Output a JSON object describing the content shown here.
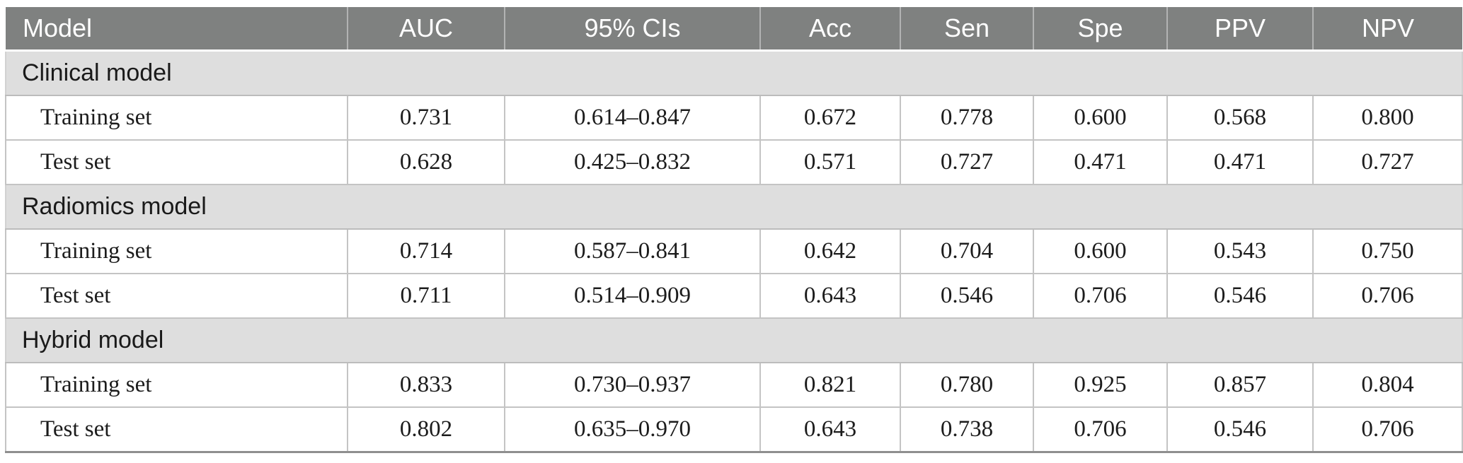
{
  "table": {
    "columns": [
      {
        "key": "model",
        "label": "Model"
      },
      {
        "key": "auc",
        "label": "AUC"
      },
      {
        "key": "ci",
        "label": "95% CIs"
      },
      {
        "key": "acc",
        "label": "Acc"
      },
      {
        "key": "sen",
        "label": "Sen"
      },
      {
        "key": "spe",
        "label": "Spe"
      },
      {
        "key": "ppv",
        "label": "PPV"
      },
      {
        "key": "npv",
        "label": "NPV"
      }
    ],
    "sections": [
      {
        "name": "Clinical model",
        "rows": [
          {
            "label": "Training set",
            "values": [
              "0.731",
              "0.614–0.847",
              "0.672",
              "0.778",
              "0.600",
              "0.568",
              "0.800"
            ]
          },
          {
            "label": "Test set",
            "values": [
              "0.628",
              "0.425–0.832",
              "0.571",
              "0.727",
              "0.471",
              "0.471",
              "0.727"
            ]
          }
        ]
      },
      {
        "name": "Radiomics model",
        "rows": [
          {
            "label": "Training set",
            "values": [
              "0.714",
              "0.587–0.841",
              "0.642",
              "0.704",
              "0.600",
              "0.543",
              "0.750"
            ]
          },
          {
            "label": "Test set",
            "values": [
              "0.711",
              "0.514–0.909",
              "0.643",
              "0.546",
              "0.706",
              "0.546",
              "0.706"
            ]
          }
        ]
      },
      {
        "name": "Hybrid model",
        "rows": [
          {
            "label": "Training set",
            "values": [
              "0.833",
              "0.730–0.937",
              "0.821",
              "0.780",
              "0.925",
              "0.857",
              "0.804"
            ]
          },
          {
            "label": "Test set",
            "values": [
              "0.802",
              "0.635–0.970",
              "0.643",
              "0.738",
              "0.706",
              "0.546",
              "0.706"
            ]
          }
        ]
      }
    ]
  },
  "colors": {
    "header_bg": "#7f8180",
    "header_text": "#ffffff",
    "section_bg": "#dedede",
    "row_bg": "#ffffff",
    "grid_line": "#c4c4c4",
    "bottom_rule": "#8f8f8f"
  }
}
